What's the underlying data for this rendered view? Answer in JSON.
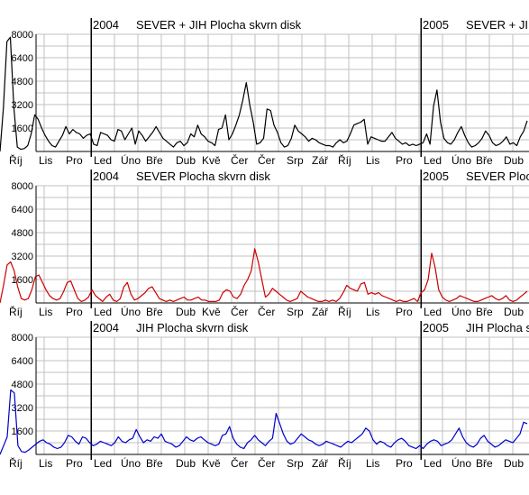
{
  "colors": {
    "grid": "#c0c0c0",
    "axis": "#000000",
    "background": "#ffffff"
  },
  "chart_data": [
    {
      "type": "line",
      "headers": [
        {
          "year": "2004",
          "text": "SEVER + JIH   Plocha skvrn disk"
        },
        {
          "year": "2005",
          "text": "SEVER + JIH   Plocha skvrn disk"
        }
      ],
      "ylim": [
        0,
        8000
      ],
      "y_ticks": [
        "8000",
        "6400",
        "4800",
        "3200",
        "1600"
      ],
      "x_ticks": [
        "Říj",
        "Lis",
        "Pro",
        "Led",
        "Úno",
        "Bře",
        "Dub",
        "Kvě",
        "Čer",
        "Čer",
        "Srp",
        "Zář",
        "Říj",
        "Lis",
        "Pro",
        "Led",
        "Úno",
        "Bře",
        "Dub"
      ],
      "grid": true,
      "series": [
        {
          "color": "#000000",
          "values": [
            0,
            3000,
            7500,
            7800,
            3000,
            300,
            150,
            200,
            400,
            1200,
            2500,
            2200,
            1600,
            1100,
            700,
            400,
            300,
            700,
            1100,
            1700,
            1200,
            1500,
            1300,
            1200,
            900,
            1100,
            1200,
            500,
            400,
            1300,
            1200,
            1100,
            800,
            700,
            1500,
            1400,
            800,
            1200,
            1600,
            500,
            1400,
            1100,
            700,
            1000,
            1300,
            1700,
            1300,
            900,
            700,
            500,
            300,
            600,
            700,
            400,
            600,
            1200,
            1000,
            1800,
            1200,
            1000,
            700,
            600,
            400,
            1500,
            1600,
            2500,
            800,
            1200,
            1800,
            2500,
            3500,
            4700,
            3200,
            2000,
            500,
            600,
            900,
            2900,
            2800,
            1800,
            1300,
            600,
            300,
            400,
            900,
            1800,
            1400,
            1200,
            1000,
            700,
            900,
            800,
            600,
            500,
            400,
            400,
            300,
            600,
            800,
            600,
            700,
            1200,
            1800,
            1900,
            2000,
            2200,
            500,
            1000,
            900,
            800,
            700,
            700,
            1000,
            1300,
            900,
            700,
            500,
            600,
            400,
            500,
            400,
            500,
            600,
            1200,
            500,
            3100,
            4200,
            2000,
            900,
            600,
            500,
            800,
            1300,
            1700,
            1100,
            600,
            300,
            400,
            600,
            900,
            1400,
            1100,
            600,
            400,
            500,
            700,
            1000,
            500,
            600,
            400,
            1000,
            1400,
            2100
          ]
        }
      ]
    },
    {
      "type": "line",
      "headers": [
        {
          "year": "2004",
          "text": "SEVER   Plocha skvrn disk"
        },
        {
          "year": "2005",
          "text": "SEVER   Plocha skvrn disk"
        }
      ],
      "ylim": [
        0,
        8000
      ],
      "y_ticks": [
        "8000",
        "6400",
        "4800",
        "3200",
        "1600"
      ],
      "x_ticks": [
        "Říj",
        "Lis",
        "Pro",
        "Led",
        "Úno",
        "Bře",
        "Dub",
        "Kvě",
        "Čer",
        "Čer",
        "Srp",
        "Zář",
        "Říj",
        "Lis",
        "Pro",
        "Led",
        "Úno",
        "Bře",
        "Dub"
      ],
      "grid": true,
      "series": [
        {
          "color": "#cc0000",
          "values": [
            0,
            1200,
            2600,
            2800,
            2200,
            1100,
            300,
            200,
            300,
            900,
            1800,
            1900,
            1400,
            900,
            500,
            300,
            200,
            300,
            800,
            1400,
            1500,
            900,
            300,
            100,
            200,
            400,
            900,
            500,
            300,
            100,
            400,
            600,
            200,
            100,
            300,
            1100,
            1400,
            600,
            200,
            300,
            500,
            700,
            1000,
            1100,
            700,
            300,
            200,
            100,
            200,
            100,
            200,
            300,
            400,
            200,
            200,
            300,
            400,
            200,
            200,
            100,
            100,
            100,
            200,
            700,
            900,
            800,
            400,
            300,
            600,
            1200,
            1600,
            2200,
            3700,
            2800,
            1600,
            400,
            600,
            1000,
            800,
            600,
            400,
            200,
            100,
            200,
            300,
            800,
            600,
            400,
            300,
            200,
            100,
            100,
            200,
            100,
            200,
            100,
            300,
            700,
            1200,
            1000,
            900,
            800,
            1300,
            1400,
            600,
            700,
            600,
            700,
            500,
            400,
            300,
            200,
            100,
            200,
            100,
            100,
            200,
            300,
            100,
            700,
            900,
            1600,
            3400,
            2400,
            900,
            400,
            200,
            100,
            200,
            300,
            500,
            400,
            300,
            200,
            100,
            100,
            200,
            300,
            400,
            500,
            300,
            200,
            300,
            500,
            200,
            100,
            200,
            400,
            600,
            800
          ]
        }
      ]
    },
    {
      "type": "line",
      "headers": [
        {
          "year": "2004",
          "text": "JIH   Plocha skvrn disk"
        },
        {
          "year": "2005",
          "text": "JIH   Plocha skvrn disk"
        }
      ],
      "ylim": [
        0,
        8000
      ],
      "y_ticks": [
        "8000",
        "6400",
        "4800",
        "3200",
        "1600"
      ],
      "x_ticks": [
        "Říj",
        "Lis",
        "Pro",
        "Led",
        "Úno",
        "Bře",
        "Dub",
        "Kvě",
        "Čer",
        "Čer",
        "Srp",
        "Zář",
        "Říj",
        "Lis",
        "Pro",
        "Led",
        "Úno",
        "Bře",
        "Dub"
      ],
      "grid": true,
      "series": [
        {
          "color": "#0000cc",
          "values": [
            0,
            600,
            1200,
            4400,
            4200,
            600,
            200,
            150,
            300,
            500,
            700,
            900,
            1000,
            800,
            700,
            500,
            400,
            500,
            800,
            1300,
            1200,
            900,
            700,
            1200,
            1100,
            800,
            600,
            700,
            900,
            800,
            700,
            600,
            800,
            1200,
            900,
            800,
            1000,
            1100,
            1700,
            1200,
            800,
            1000,
            900,
            1200,
            1100,
            1400,
            900,
            800,
            700,
            500,
            600,
            900,
            1200,
            1000,
            900,
            1100,
            1200,
            1000,
            800,
            700,
            600,
            700,
            1300,
            1400,
            1900,
            1100,
            700,
            500,
            400,
            800,
            1000,
            1300,
            1000,
            800,
            600,
            900,
            1100,
            2800,
            2100,
            1400,
            900,
            700,
            800,
            1100,
            1400,
            1200,
            1000,
            900,
            700,
            600,
            700,
            900,
            800,
            700,
            600,
            500,
            700,
            900,
            800,
            1000,
            1200,
            1400,
            1800,
            1600,
            1000,
            700,
            900,
            800,
            600,
            500,
            800,
            1000,
            1100,
            900,
            600,
            500,
            400,
            600,
            400,
            700,
            900,
            1000,
            900,
            600,
            700,
            800,
            1000,
            1400,
            1800,
            1200,
            800,
            600,
            500,
            700,
            1100,
            1300,
            900,
            700,
            500,
            600,
            800,
            1000,
            900,
            800,
            1100,
            1400,
            2200,
            2100
          ]
        }
      ]
    }
  ]
}
